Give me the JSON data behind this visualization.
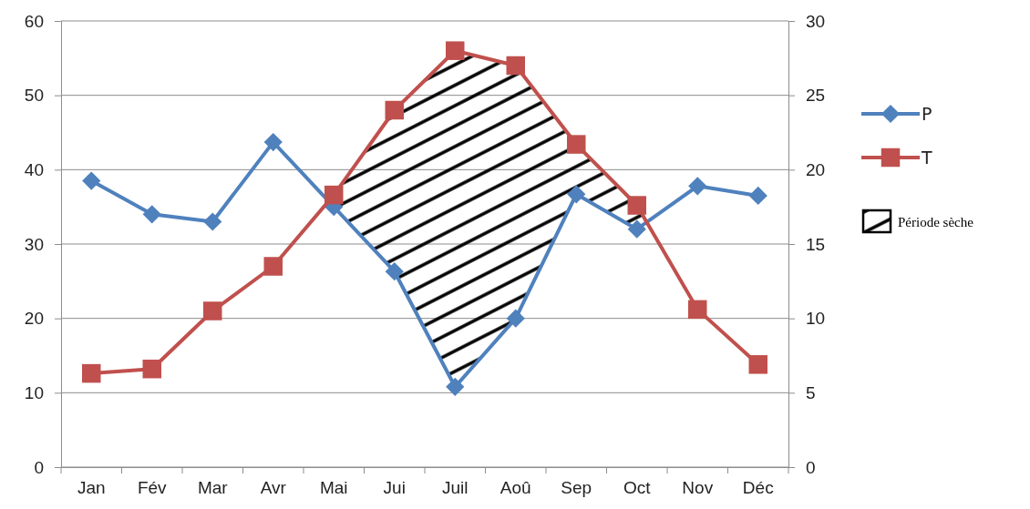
{
  "chart_data": {
    "type": "line",
    "categories": [
      "Jan",
      "Fév",
      "Mar",
      "Avr",
      "Mai",
      "Jui",
      "Juil",
      "Aoû",
      "Sep",
      "Oct",
      "Nov",
      "Déc"
    ],
    "ylim": [
      0,
      60
    ],
    "yticks": [
      0,
      10,
      20,
      30,
      40,
      50,
      60
    ],
    "y2lim": [
      0,
      30
    ],
    "y2ticks": [
      0,
      5,
      10,
      15,
      20,
      25,
      30
    ],
    "grid": "y",
    "legend": "right",
    "series": [
      {
        "name": "P",
        "color": "#4f81bd",
        "marker": "diamond",
        "values": [
          38.5,
          34,
          33,
          43.7,
          35,
          26.3,
          10.8,
          20,
          36.7,
          32,
          37.8,
          36.5
        ]
      },
      {
        "name": "T",
        "color": "#c0504d",
        "marker": "square",
        "axis": "y2",
        "values": [
          6.3,
          6.6,
          10.5,
          13.5,
          18.3,
          24,
          28,
          27,
          21.7,
          17.6,
          10.6,
          6.9
        ]
      }
    ],
    "annotations": [
      "Période sèche"
    ]
  }
}
